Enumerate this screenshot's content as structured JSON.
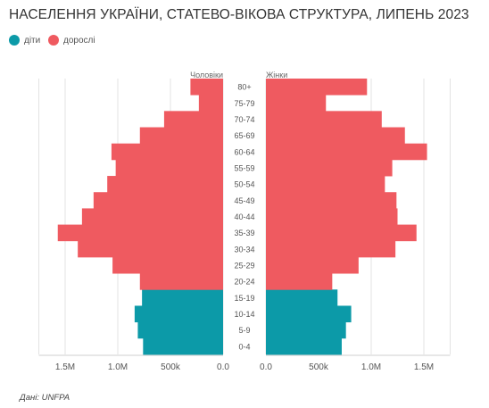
{
  "title": "НАСЕЛЕННЯ УКРАЇНИ, СТАТЕВО-ВІКОВА СТРУКТУРА, ЛИПЕНЬ 2023",
  "legend": [
    {
      "label": "діти",
      "color": "#0c9aa8"
    },
    {
      "label": "дорослі",
      "color": "#ef5a60"
    }
  ],
  "source": "Дані: UNFPA",
  "chart_data": {
    "type": "bar",
    "orientation": "horizontal",
    "title": "НАСЕЛЕННЯ УКРАЇНИ, СТАТЕВО-ВІКОВА СТРУКТУРА, ЛИПЕНЬ 2023",
    "panel_labels": {
      "left": "Чоловіки",
      "right": "Жінки"
    },
    "categories": [
      "0-4",
      "5-9",
      "10-14",
      "15-19",
      "20-24",
      "25-29",
      "30-34",
      "35-39",
      "40-44",
      "45-49",
      "50-54",
      "55-59",
      "60-64",
      "65-69",
      "70-74",
      "75-79",
      "80+"
    ],
    "series": [
      {
        "name": "Чоловіки",
        "values": [
          760000,
          810000,
          840000,
          770000,
          790000,
          1050000,
          1380000,
          1570000,
          1340000,
          1230000,
          1100000,
          1020000,
          1060000,
          790000,
          560000,
          230000,
          310000
        ]
      },
      {
        "name": "Жінки",
        "values": [
          720000,
          760000,
          810000,
          680000,
          630000,
          880000,
          1230000,
          1430000,
          1250000,
          1240000,
          1130000,
          1200000,
          1530000,
          1320000,
          1100000,
          570000,
          960000
        ]
      }
    ],
    "group_colors": {
      "діти": "#0c9aa8",
      "дорослі": "#ef5a60"
    },
    "child_categories": [
      "0-4",
      "5-9",
      "10-14",
      "15-19"
    ],
    "xlim": [
      0,
      1750000
    ],
    "ticks": {
      "left": [
        {
          "value": 1500000,
          "label": "1.5M"
        },
        {
          "value": 1000000,
          "label": "1.0M"
        },
        {
          "value": 500000,
          "label": "500k"
        },
        {
          "value": 0,
          "label": "0.0"
        }
      ],
      "right": [
        {
          "value": 0,
          "label": "0.0"
        },
        {
          "value": 500000,
          "label": "500k"
        },
        {
          "value": 1000000,
          "label": "1.0M"
        },
        {
          "value": 1500000,
          "label": "1.5M"
        }
      ]
    },
    "grid": true
  }
}
